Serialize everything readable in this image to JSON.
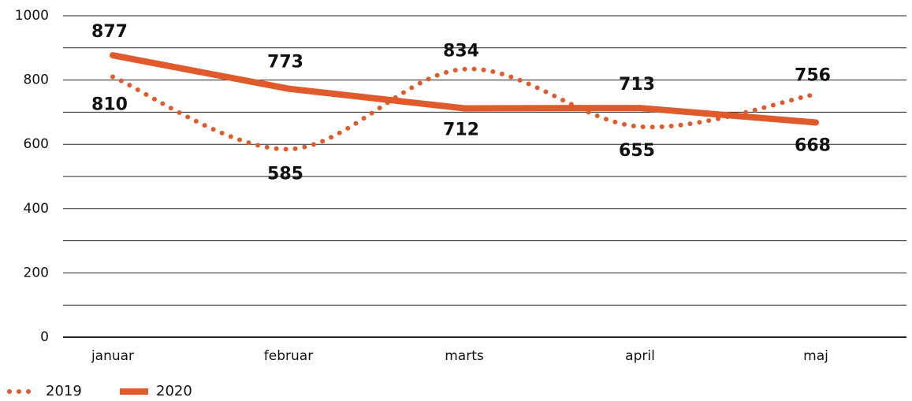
{
  "chart_data": {
    "type": "line",
    "categories": [
      "januar",
      "februar",
      "marts",
      "april",
      "maj"
    ],
    "series": [
      {
        "name": "2019",
        "color": "#e05a2b",
        "style": "dotted",
        "values": [
          810,
          585,
          834,
          655,
          756
        ]
      },
      {
        "name": "2020",
        "color": "#e05a2b",
        "style": "solid",
        "values": [
          877,
          773,
          712,
          713,
          668
        ]
      }
    ],
    "ylim": [
      0,
      1000
    ],
    "yticks": [
      0,
      200,
      400,
      600,
      800,
      1000
    ],
    "minor_yticks": [
      100,
      300,
      500,
      700,
      900
    ],
    "grid": true,
    "legend": "bottom-left"
  }
}
